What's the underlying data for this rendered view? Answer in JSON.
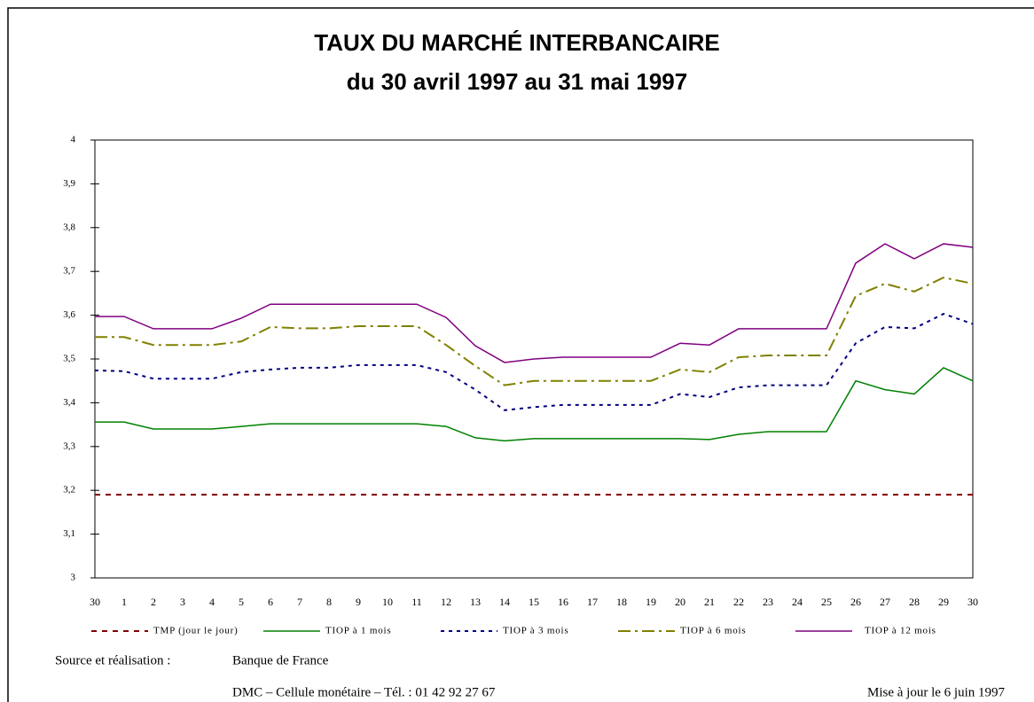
{
  "chart_data": {
    "type": "line",
    "title": "TAUX DU MARCHÉ INTERBANCAIRE",
    "subtitle": "du 30 avril 1997 au 31 mai 1997",
    "categories": [
      "30",
      "1",
      "2",
      "3",
      "4",
      "5",
      "6",
      "7",
      "8",
      "9",
      "10",
      "11",
      "12",
      "13",
      "14",
      "15",
      "16",
      "17",
      "18",
      "19",
      "20",
      "21",
      "22",
      "23",
      "24",
      "25",
      "26",
      "27",
      "28",
      "29",
      "30"
    ],
    "ylim": [
      3,
      4
    ],
    "yticks": [
      3,
      {
        "value": 3.1,
        "label": "3,1"
      },
      {
        "value": 3.2,
        "label": "3,2"
      },
      {
        "value": 3.3,
        "label": "3,3"
      },
      {
        "value": 3.4,
        "label": "3,4"
      },
      {
        "value": 3.5,
        "label": "3,5"
      },
      {
        "value": 3.6,
        "label": "3,6"
      },
      {
        "value": 3.7,
        "label": "3,7"
      },
      {
        "value": 3.8,
        "label": "3,8"
      },
      {
        "value": 3.9,
        "label": "3,9"
      },
      4
    ],
    "series": [
      {
        "name": "TMP (jour le jour)",
        "color": "#800000",
        "style": "dashed",
        "values": [
          3.19,
          3.19,
          3.19,
          3.19,
          3.19,
          3.19,
          3.19,
          3.19,
          3.19,
          3.19,
          3.19,
          3.19,
          3.19,
          3.19,
          3.19,
          3.19,
          3.19,
          3.19,
          3.19,
          3.19,
          3.19,
          3.19,
          3.19,
          3.19,
          3.19,
          3.19,
          3.19,
          3.19,
          3.19,
          3.19,
          3.19
        ]
      },
      {
        "name": "TIOP à  1 mois",
        "color": "#008000",
        "style": "solid",
        "values": [
          3.356,
          3.356,
          3.34,
          3.34,
          3.34,
          3.346,
          3.352,
          3.352,
          3.352,
          3.352,
          3.352,
          3.352,
          3.346,
          3.32,
          3.313,
          3.318,
          3.318,
          3.318,
          3.318,
          3.318,
          3.318,
          3.316,
          3.328,
          3.334,
          3.334,
          3.334,
          3.45,
          3.43,
          3.42,
          3.48,
          3.45
        ]
      },
      {
        "name": "TIOP à 3 mois",
        "color": "#000080",
        "style": "dotted",
        "values": [
          3.474,
          3.472,
          3.455,
          3.455,
          3.455,
          3.47,
          3.476,
          3.48,
          3.48,
          3.486,
          3.486,
          3.486,
          3.47,
          3.43,
          3.383,
          3.39,
          3.395,
          3.395,
          3.395,
          3.395,
          3.42,
          3.413,
          3.435,
          3.44,
          3.44,
          3.44,
          3.536,
          3.573,
          3.57,
          3.603,
          3.58
        ]
      },
      {
        "name": "TIOP à 6 mois",
        "color": "#808000",
        "style": "dashdot",
        "values": [
          3.55,
          3.55,
          3.532,
          3.532,
          3.532,
          3.54,
          3.573,
          3.57,
          3.57,
          3.575,
          3.575,
          3.575,
          3.532,
          3.484,
          3.44,
          3.45,
          3.45,
          3.45,
          3.45,
          3.45,
          3.476,
          3.47,
          3.504,
          3.508,
          3.508,
          3.508,
          3.644,
          3.672,
          3.654,
          3.686,
          3.672
        ]
      },
      {
        "name": "TIOP à 12 mois",
        "color": "#800080",
        "style": "solid",
        "values": [
          3.597,
          3.597,
          3.569,
          3.569,
          3.569,
          3.593,
          3.625,
          3.625,
          3.625,
          3.625,
          3.625,
          3.625,
          3.595,
          3.53,
          3.492,
          3.5,
          3.504,
          3.504,
          3.504,
          3.504,
          3.536,
          3.532,
          3.569,
          3.569,
          3.569,
          3.569,
          3.719,
          3.763,
          3.729,
          3.763,
          3.755
        ]
      }
    ]
  },
  "footer": {
    "source_label": "Source et réalisation :",
    "source": "Banque de France",
    "contact": "DMC – Cellule monétaire  – Tél. :  01 42 92 27 67",
    "update": "Mise à jour le 6 juin 1997"
  }
}
